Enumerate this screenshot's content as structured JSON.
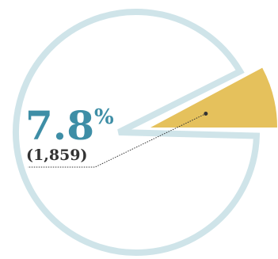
{
  "chart_data": {
    "type": "pie",
    "values": [
      7.8
    ],
    "value_labels": [
      "7.8%"
    ],
    "color": "#e5c15c",
    "ring_color": "#cfe4e9",
    "annotations": [
      "(1,859)"
    ]
  }
}
